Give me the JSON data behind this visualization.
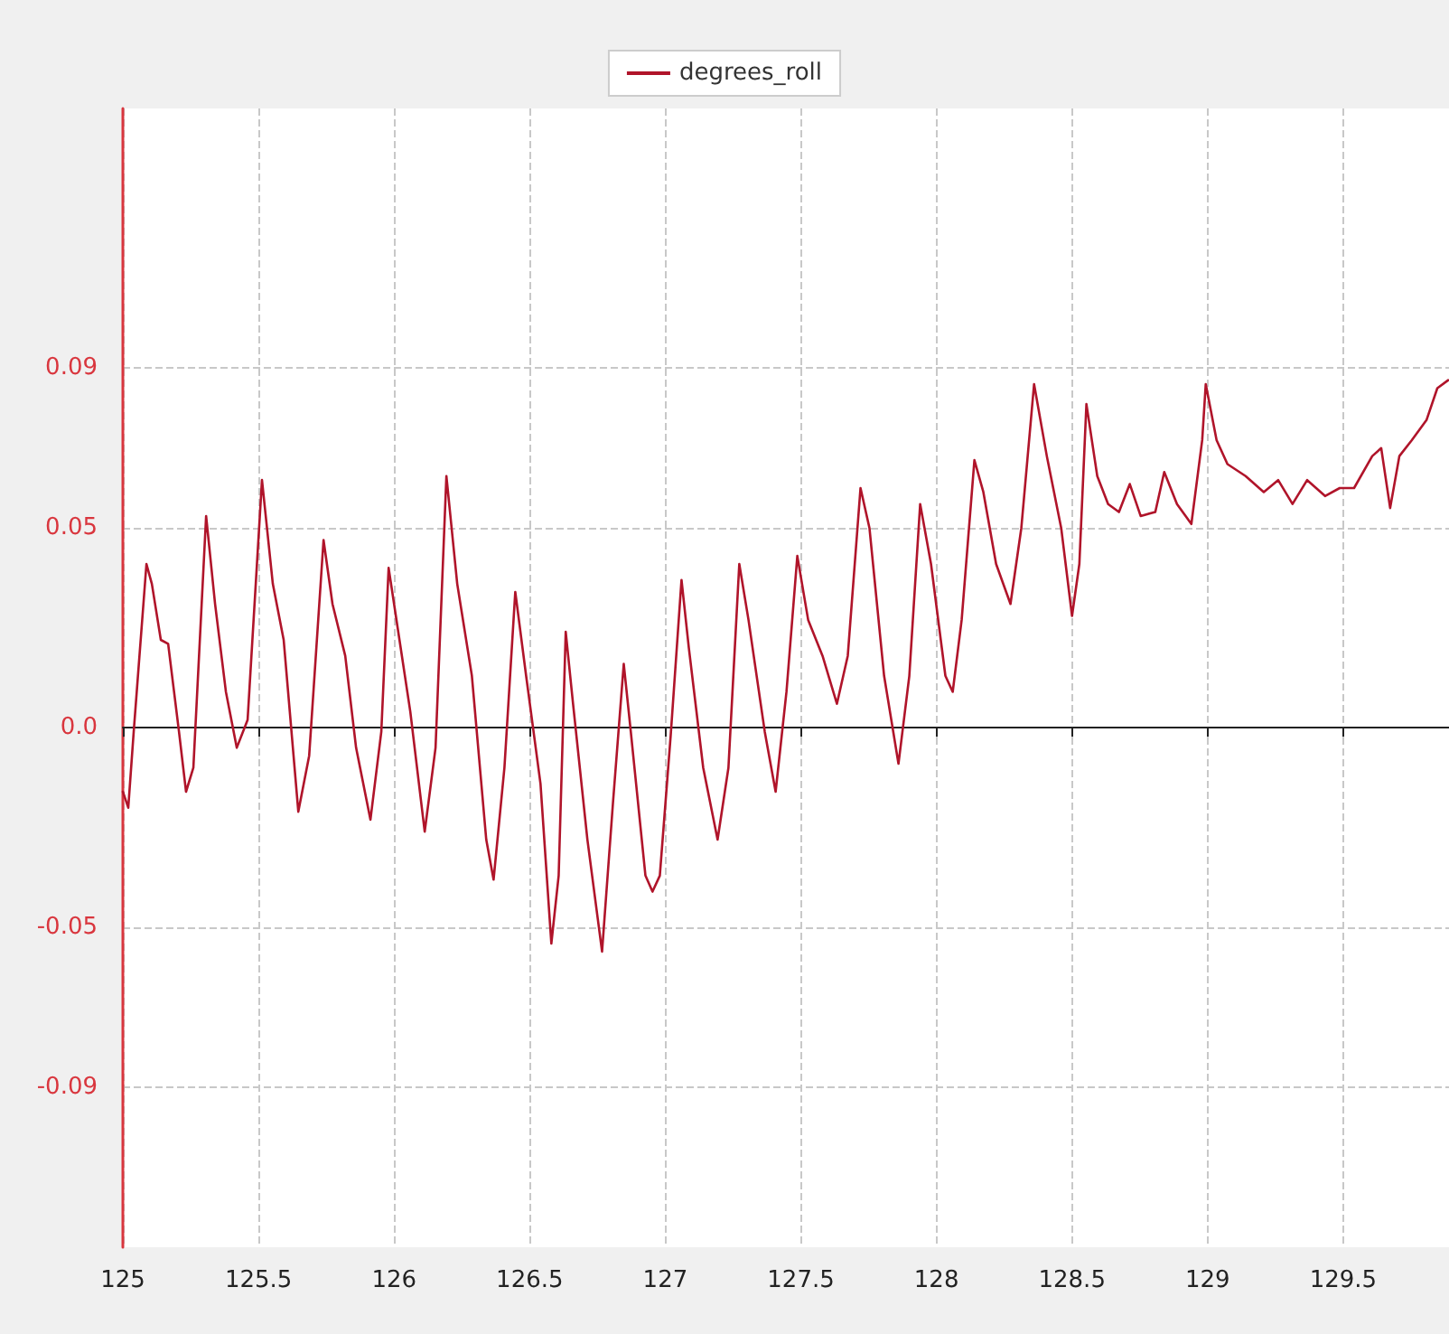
{
  "chart_data": {
    "type": "line",
    "legend": "top",
    "grid": true,
    "line_style": "solid",
    "marker": "none",
    "xlim": [
      125,
      129.89
    ],
    "xticks": [
      125,
      125.5,
      126,
      126.5,
      127,
      127.5,
      128,
      128.5,
      129,
      129.5
    ],
    "ylim": [
      -0.13,
      0.155
    ],
    "yticks": [
      -0.09,
      -0.05,
      {
        "value": 0,
        "label": "0.0"
      },
      0.05,
      0.09
    ],
    "series": [
      {
        "name": "degrees_roll",
        "color": "#b0142a",
        "x": [
          125.0,
          125.02,
          125.04,
          125.087,
          125.107,
          125.14,
          125.167,
          125.207,
          125.233,
          125.26,
          125.307,
          125.34,
          125.38,
          125.42,
          125.46,
          125.513,
          125.553,
          125.593,
          125.647,
          125.687,
          125.74,
          125.773,
          125.82,
          125.86,
          125.913,
          125.953,
          125.98,
          126.02,
          126.06,
          126.113,
          126.153,
          126.193,
          126.233,
          126.287,
          126.34,
          126.367,
          126.407,
          126.447,
          126.487,
          126.54,
          126.58,
          126.607,
          126.633,
          126.66,
          126.713,
          126.767,
          126.807,
          126.847,
          126.873,
          126.927,
          126.953,
          126.98,
          127.02,
          127.06,
          127.087,
          127.14,
          127.193,
          127.233,
          127.273,
          127.307,
          127.367,
          127.407,
          127.447,
          127.487,
          127.527,
          127.58,
          127.633,
          127.673,
          127.72,
          127.753,
          127.807,
          127.86,
          127.9,
          127.94,
          127.98,
          128.033,
          128.06,
          128.093,
          128.14,
          128.173,
          128.22,
          128.273,
          128.313,
          128.36,
          128.407,
          128.46,
          128.5,
          128.527,
          128.553,
          128.593,
          128.633,
          128.673,
          128.713,
          128.753,
          128.807,
          128.84,
          128.887,
          128.94,
          128.98,
          128.993,
          129.033,
          129.073,
          129.14,
          129.207,
          129.26,
          129.313,
          129.367,
          129.433,
          129.487,
          129.54,
          129.607,
          129.64,
          129.673,
          129.707,
          129.753,
          129.807,
          129.847,
          129.887
        ],
        "values": [
          -0.016,
          -0.02,
          -0.001,
          0.041,
          0.036,
          0.022,
          0.021,
          -0.001,
          -0.016,
          -0.01,
          0.053,
          0.031,
          0.009,
          -0.005,
          0.002,
          0.062,
          0.036,
          0.022,
          -0.021,
          -0.007,
          0.047,
          0.031,
          0.018,
          -0.005,
          -0.023,
          -0.001,
          0.04,
          0.022,
          0.004,
          -0.026,
          -0.005,
          0.063,
          0.036,
          0.013,
          -0.028,
          -0.038,
          -0.01,
          0.034,
          0.013,
          -0.014,
          -0.054,
          -0.037,
          0.024,
          0.006,
          -0.028,
          -0.056,
          -0.019,
          0.016,
          -0.001,
          -0.037,
          -0.041,
          -0.037,
          -0.002,
          0.037,
          0.02,
          -0.01,
          -0.028,
          -0.01,
          0.041,
          0.027,
          -0.001,
          -0.016,
          0.009,
          0.043,
          0.027,
          0.018,
          0.006,
          0.018,
          0.06,
          0.05,
          0.013,
          -0.009,
          0.013,
          0.056,
          0.041,
          0.013,
          0.009,
          0.027,
          0.067,
          0.059,
          0.041,
          0.031,
          0.05,
          0.086,
          0.068,
          0.05,
          0.028,
          0.041,
          0.081,
          0.063,
          0.056,
          0.054,
          0.061,
          0.053,
          0.054,
          0.064,
          0.056,
          0.051,
          0.072,
          0.086,
          0.072,
          0.066,
          0.063,
          0.059,
          0.062,
          0.056,
          0.062,
          0.058,
          0.06,
          0.06,
          0.068,
          0.07,
          0.055,
          0.068,
          0.072,
          0.077,
          0.085,
          0.087
        ]
      }
    ]
  }
}
